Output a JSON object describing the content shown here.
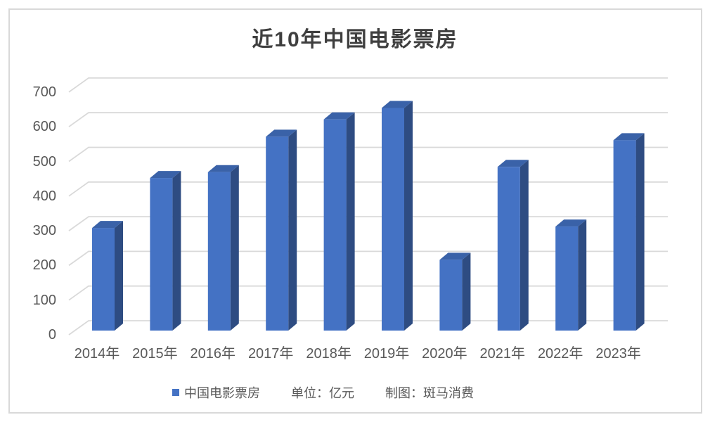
{
  "title": "近10年中国电影票房",
  "legend": {
    "series_label": "中国电影票房",
    "unit_label": "单位：亿元",
    "credit_label": "制图：斑马消费"
  },
  "chart_data": {
    "type": "bar",
    "style": "3d",
    "title": "近10年中国电影票房",
    "categories": [
      "2014年",
      "2015年",
      "2016年",
      "2017年",
      "2018年",
      "2019年",
      "2020年",
      "2021年",
      "2022年",
      "2023年"
    ],
    "series": [
      {
        "name": "中国电影票房",
        "values": [
          296,
          440,
          457,
          559,
          609,
          642,
          204,
          472,
          300,
          549
        ]
      }
    ],
    "unit": "亿元",
    "xlabel": "",
    "ylabel": "",
    "ylim": [
      0,
      700
    ],
    "yticks": [
      0,
      100,
      200,
      300,
      400,
      500,
      600,
      700
    ],
    "grid": true,
    "legend_position": "bottom"
  },
  "colors": {
    "bar_front": "#4472c4",
    "bar_top": "#3a62a8",
    "bar_side": "#2e4c82",
    "gridline": "#d9d9d9",
    "axis_text": "#595959",
    "title_text": "#3f3f3f"
  }
}
